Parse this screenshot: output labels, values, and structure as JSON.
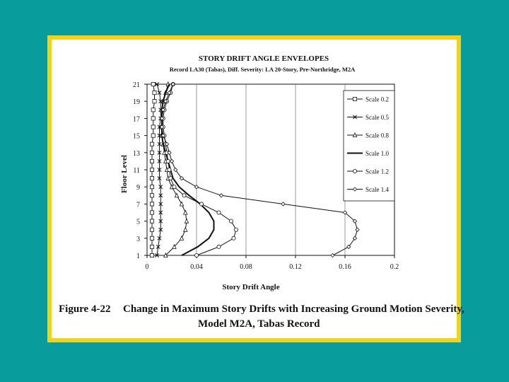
{
  "colors": {
    "background": "#089c9c",
    "frame": "#f2d21a",
    "paper": "#ffffff",
    "ink": "#111111"
  },
  "chart_data": {
    "type": "line",
    "title": "STORY DRIFT ANGLE ENVELOPES",
    "subtitle": "Record LA30 (Tabas), Diff. Severity: LA 20-Story, Pre-Northridge, M2A",
    "xlabel": "Story Drift Angle",
    "ylabel": "Floor Level",
    "xlim": [
      0,
      0.2
    ],
    "ylim": [
      1,
      21
    ],
    "x_ticks": [
      "0",
      "0.04",
      "0.08",
      "0.12",
      "0.16",
      "0.2"
    ],
    "y_ticks": [
      "1",
      "3",
      "5",
      "7",
      "9",
      "11",
      "13",
      "15",
      "17",
      "19",
      "21"
    ],
    "legend_position": "right",
    "y": [
      1,
      2,
      3,
      4,
      5,
      6,
      7,
      8,
      9,
      10,
      11,
      12,
      13,
      14,
      15,
      16,
      17,
      18,
      19,
      20,
      21
    ],
    "series": [
      {
        "name": "Scale 0.2",
        "marker": "square",
        "values": [
          0.004,
          0.004,
          0.004,
          0.004,
          0.004,
          0.004,
          0.004,
          0.004,
          0.004,
          0.004,
          0.004,
          0.004,
          0.004,
          0.004,
          0.005,
          0.005,
          0.005,
          0.005,
          0.006,
          0.006,
          0.005
        ]
      },
      {
        "name": "Scale 0.5",
        "marker": "x",
        "values": [
          0.008,
          0.009,
          0.01,
          0.011,
          0.011,
          0.011,
          0.011,
          0.011,
          0.011,
          0.01,
          0.01,
          0.01,
          0.01,
          0.01,
          0.01,
          0.01,
          0.011,
          0.011,
          0.011,
          0.01,
          0.008
        ]
      },
      {
        "name": "Scale 0.8",
        "marker": "triangle",
        "values": [
          0.015,
          0.022,
          0.028,
          0.031,
          0.032,
          0.031,
          0.028,
          0.024,
          0.02,
          0.017,
          0.016,
          0.015,
          0.014,
          0.013,
          0.012,
          0.012,
          0.012,
          0.012,
          0.013,
          0.015,
          0.017
        ]
      },
      {
        "name": "Scale 1.0",
        "marker": "none",
        "values": [
          0.028,
          0.041,
          0.05,
          0.054,
          0.054,
          0.05,
          0.043,
          0.034,
          0.026,
          0.021,
          0.019,
          0.017,
          0.015,
          0.013,
          0.012,
          0.012,
          0.012,
          0.012,
          0.013,
          0.015,
          0.018
        ]
      },
      {
        "name": "Scale 1.2",
        "marker": "circle",
        "values": [
          0.04,
          0.058,
          0.07,
          0.072,
          0.068,
          0.058,
          0.044,
          0.03,
          0.022,
          0.019,
          0.018,
          0.017,
          0.016,
          0.015,
          0.014,
          0.013,
          0.013,
          0.014,
          0.016,
          0.019,
          0.021
        ]
      },
      {
        "name": "Scale 1.4",
        "marker": "diamond",
        "values": [
          0.15,
          0.163,
          0.168,
          0.17,
          0.168,
          0.16,
          0.11,
          0.06,
          0.04,
          0.028,
          0.023,
          0.02,
          0.018,
          0.016,
          0.013,
          0.012,
          0.012,
          0.013,
          0.015,
          0.018,
          0.021
        ]
      }
    ],
    "legend": [
      "Scale 0.2",
      "Scale 0.5",
      "Scale 0.8",
      "Scale 1.0",
      "Scale 1.2",
      "Scale 1.4"
    ]
  },
  "caption": {
    "figure_label": "Figure 4-22",
    "line1": "Change in Maximum Story Drifts with Increasing Ground Motion Severity,",
    "line2": "Model M2A, Tabas Record"
  }
}
